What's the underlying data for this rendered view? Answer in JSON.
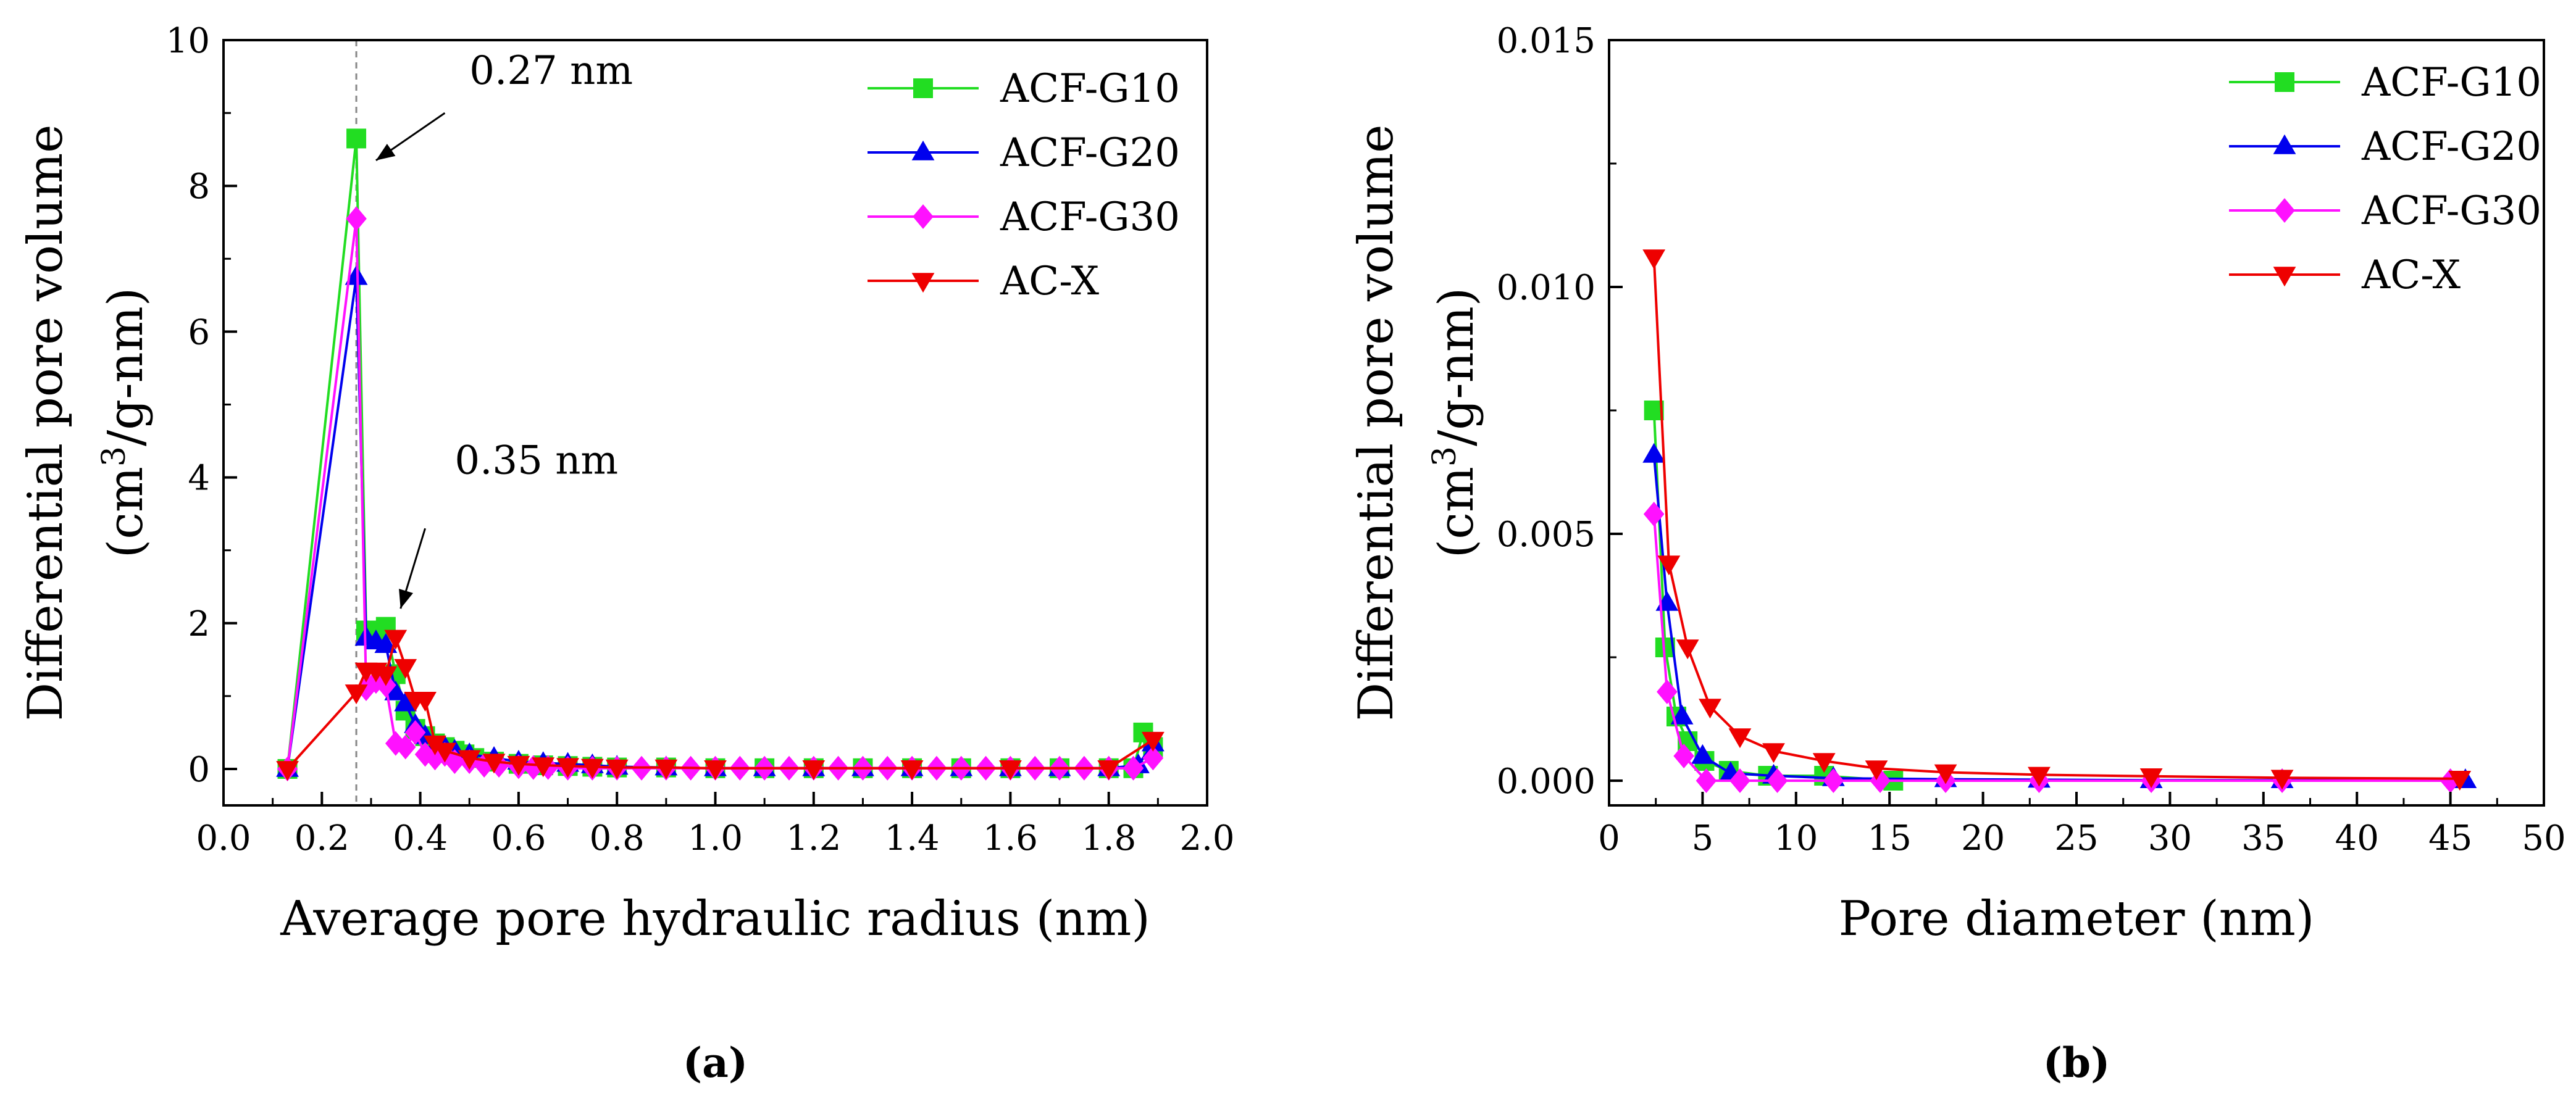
{
  "chart_data": [
    {
      "type": "line",
      "panel_label": "(a)",
      "xlabel": "Average pore hydraulic radius (nm)",
      "ylabel_main": "Differential pore volume",
      "ylabel_unit_pre": "(cm",
      "ylabel_unit_sup": "3",
      "ylabel_unit_post": "/g-nm)",
      "xlim": [
        0,
        2.0
      ],
      "ylim": [
        -0.5,
        10
      ],
      "xticks": [
        "0.0",
        "0.2",
        "0.4",
        "0.6",
        "0.8",
        "1.0",
        "1.2",
        "1.4",
        "1.6",
        "1.8",
        "2.0"
      ],
      "yticks": [
        "0",
        "2",
        "4",
        "6",
        "8",
        "10"
      ],
      "legend_position": "top-right",
      "reference_line_x": 0.27,
      "annotations": [
        {
          "text": "0.27 nm",
          "x": 0.5,
          "y": 9.4,
          "arrow_from": [
            0.45,
            9.0
          ],
          "arrow_to": [
            0.31,
            8.35
          ]
        },
        {
          "text": "0.35 nm",
          "x": 0.47,
          "y": 4.05,
          "arrow_from": [
            0.41,
            3.3
          ],
          "arrow_to": [
            0.36,
            2.2
          ]
        }
      ],
      "series": [
        {
          "name": "ACF-G10",
          "color": "#22dd22",
          "marker": "square",
          "x": [
            0.13,
            0.27,
            0.29,
            0.31,
            0.33,
            0.35,
            0.37,
            0.39,
            0.41,
            0.43,
            0.45,
            0.47,
            0.49,
            0.51,
            0.55,
            0.6,
            0.65,
            0.7,
            0.75,
            0.8,
            0.9,
            1.0,
            1.1,
            1.2,
            1.3,
            1.4,
            1.5,
            1.6,
            1.7,
            1.8,
            1.85,
            1.87,
            1.89
          ],
          "y": [
            0,
            8.65,
            1.9,
            1.85,
            1.95,
            1.3,
            0.8,
            0.55,
            0.45,
            0.35,
            0.3,
            0.25,
            0.2,
            0.15,
            0.1,
            0.07,
            0.05,
            0.04,
            0.03,
            0.02,
            0.02,
            0.01,
            0.01,
            0.01,
            0.01,
            0.01,
            0.01,
            0.01,
            0.01,
            0.01,
            0.01,
            0.5,
            0.3
          ]
        },
        {
          "name": "ACF-G20",
          "color": "#0000ee",
          "marker": "triangle-up",
          "x": [
            0.13,
            0.27,
            0.29,
            0.31,
            0.33,
            0.35,
            0.37,
            0.39,
            0.41,
            0.43,
            0.45,
            0.47,
            0.5,
            0.55,
            0.6,
            0.65,
            0.7,
            0.75,
            0.8,
            0.9,
            1.0,
            1.1,
            1.2,
            1.3,
            1.4,
            1.5,
            1.6,
            1.7,
            1.8,
            1.86,
            1.89
          ],
          "y": [
            0,
            6.75,
            1.8,
            1.75,
            1.7,
            1.05,
            0.9,
            0.6,
            0.45,
            0.3,
            0.3,
            0.25,
            0.2,
            0.15,
            0.1,
            0.08,
            0.07,
            0.05,
            0.03,
            0.02,
            0.01,
            0.01,
            0.01,
            0.01,
            0.01,
            0.01,
            0.01,
            0.01,
            0.01,
            0.05,
            0.35
          ]
        },
        {
          "name": "ACF-G30",
          "color": "#ff11ff",
          "marker": "diamond",
          "x": [
            0.13,
            0.27,
            0.29,
            0.31,
            0.33,
            0.35,
            0.37,
            0.39,
            0.41,
            0.43,
            0.45,
            0.47,
            0.5,
            0.53,
            0.56,
            0.6,
            0.63,
            0.66,
            0.7,
            0.75,
            0.8,
            0.85,
            0.9,
            0.95,
            1.0,
            1.05,
            1.1,
            1.15,
            1.2,
            1.25,
            1.3,
            1.35,
            1.4,
            1.45,
            1.5,
            1.55,
            1.6,
            1.65,
            1.7,
            1.75,
            1.8,
            1.85,
            1.89
          ],
          "y": [
            0,
            7.55,
            1.1,
            1.2,
            1.15,
            0.35,
            0.3,
            0.5,
            0.2,
            0.15,
            0.2,
            0.1,
            0.1,
            0.05,
            0.05,
            0.03,
            0.02,
            0.02,
            0.01,
            0.01,
            0.01,
            0.01,
            0.01,
            0.01,
            0.01,
            0.01,
            0.01,
            0.01,
            0.01,
            0.01,
            0.01,
            0.01,
            0.01,
            0.01,
            0.01,
            0.01,
            0.01,
            0.01,
            0.01,
            0.01,
            0.01,
            0.01,
            0.15
          ]
        },
        {
          "name": "AC-X",
          "color": "#ee0000",
          "marker": "triangle-down",
          "x": [
            0.13,
            0.27,
            0.29,
            0.31,
            0.33,
            0.35,
            0.37,
            0.39,
            0.41,
            0.43,
            0.45,
            0.5,
            0.55,
            0.6,
            0.65,
            0.7,
            0.75,
            0.8,
            0.9,
            1.0,
            1.2,
            1.4,
            1.6,
            1.8,
            1.89
          ],
          "y": [
            0,
            1.05,
            1.35,
            1.35,
            1.3,
            1.8,
            1.4,
            0.95,
            0.95,
            0.35,
            0.25,
            0.15,
            0.1,
            0.07,
            0.05,
            0.04,
            0.03,
            0.02,
            0.02,
            0.01,
            0.01,
            0.01,
            0.01,
            0.01,
            0.4
          ]
        }
      ]
    },
    {
      "type": "line",
      "panel_label": "(b)",
      "xlabel": "Pore diameter (nm)",
      "ylabel_main": "Differential pore volume",
      "ylabel_unit_pre": "(cm",
      "ylabel_unit_sup": "3",
      "ylabel_unit_post": "/g-nm)",
      "xlim": [
        0,
        50
      ],
      "ylim": [
        -0.0005,
        0.015
      ],
      "xticks": [
        "0",
        "5",
        "10",
        "15",
        "20",
        "25",
        "30",
        "35",
        "40",
        "45",
        "50"
      ],
      "yticks": [
        "0.000",
        "0.005",
        "0.010",
        "0.015"
      ],
      "legend_position": "top-right",
      "series": [
        {
          "name": "ACF-G10",
          "color": "#22dd22",
          "marker": "square",
          "x": [
            2.4,
            3.0,
            3.6,
            4.2,
            5.1,
            6.4,
            8.5,
            11.5,
            15.2
          ],
          "y": [
            0.0075,
            0.0027,
            0.0013,
            0.0008,
            0.0004,
            0.0002,
            0.0001,
            0.0001,
            0.0
          ]
        },
        {
          "name": "ACF-G20",
          "color": "#0000ee",
          "marker": "triangle-up",
          "x": [
            2.4,
            3.1,
            3.9,
            5.0,
            6.5,
            8.8,
            12.0,
            18.0,
            23.0,
            29.0,
            36.0,
            45.8
          ],
          "y": [
            0.0066,
            0.0036,
            0.0013,
            0.0005,
            0.00015,
            0.0001,
            5e-05,
            3e-05,
            2e-05,
            1e-05,
            1e-05,
            1e-05
          ]
        },
        {
          "name": "ACF-G30",
          "color": "#ff11ff",
          "marker": "diamond",
          "x": [
            2.4,
            3.1,
            4.0,
            5.2,
            7.0,
            9.0,
            12.0,
            14.5,
            18.0,
            23.0,
            29.0,
            36.0,
            45.0
          ],
          "y": [
            0.0054,
            0.0018,
            0.0005,
            0.0,
            0.0,
            0.0,
            0.0,
            0.0,
            0.0,
            0.0,
            0.0,
            0.0,
            0.0
          ]
        },
        {
          "name": "AC-X",
          "color": "#ee0000",
          "marker": "triangle-down",
          "x": [
            2.4,
            3.2,
            4.2,
            5.4,
            7.0,
            8.8,
            11.5,
            14.3,
            18.0,
            23.0,
            29.0,
            36.0,
            45.5
          ],
          "y": [
            0.0106,
            0.0044,
            0.0027,
            0.0015,
            0.0009,
            0.0006,
            0.0004,
            0.00025,
            0.00017,
            0.00012,
            9e-05,
            6e-05,
            4e-05
          ]
        }
      ]
    }
  ]
}
